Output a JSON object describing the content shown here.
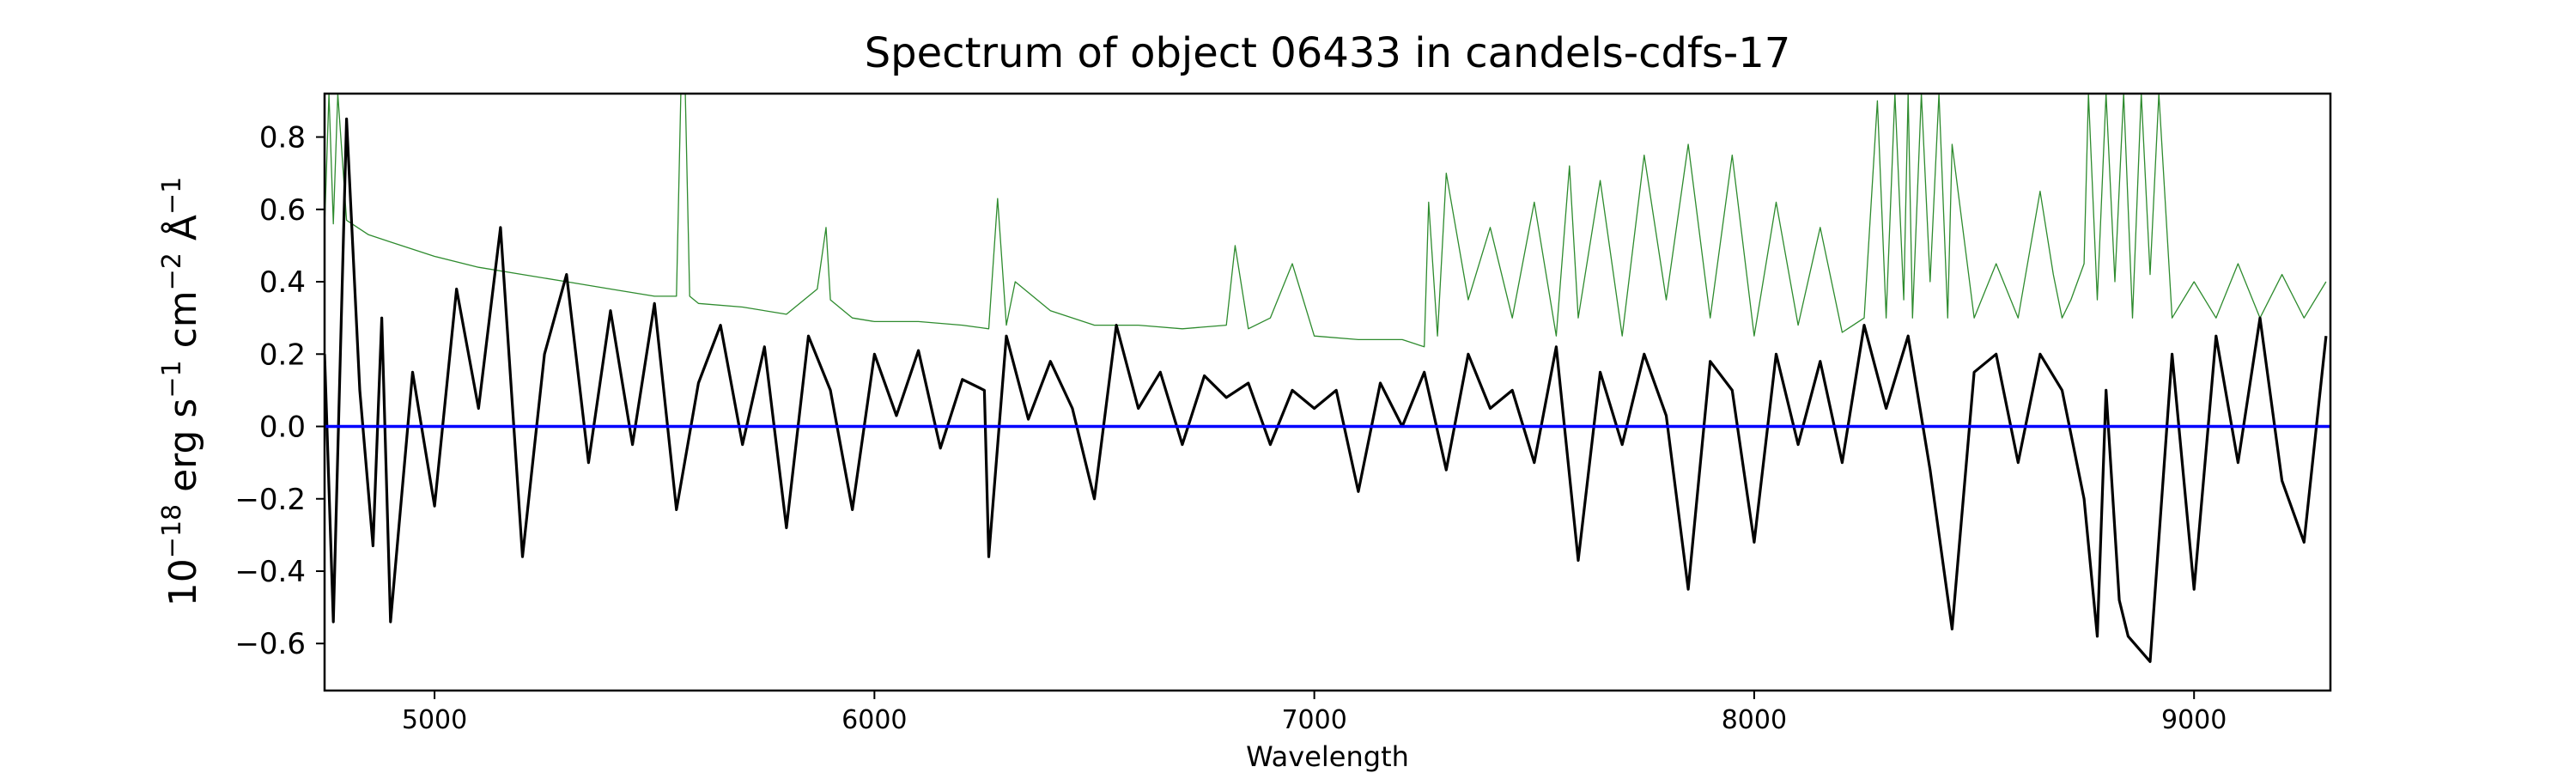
{
  "chart_data": {
    "type": "line",
    "title": "Spectrum of object 06433 in candels-cdfs-17",
    "xlabel": "Wavelength",
    "ylabel": {
      "base": "10",
      "exp1": "−18",
      "unit_erg": " erg s",
      "exp2": "−1",
      "unit_cm": " cm",
      "exp3": "−2",
      "unit_A": " Å",
      "exp4": "−1"
    },
    "xlim": [
      4750,
      9310
    ],
    "ylim": [
      -0.73,
      0.92
    ],
    "xticks": [
      5000,
      6000,
      7000,
      8000,
      9000
    ],
    "xtick_labels": [
      "5000",
      "6000",
      "7000",
      "8000",
      "9000"
    ],
    "yticks": [
      -0.6,
      -0.4,
      -0.2,
      0.0,
      0.2,
      0.4,
      0.6,
      0.8
    ],
    "ytick_labels": [
      "−0.6",
      "−0.4",
      "−0.2",
      "0.0",
      "0.2",
      "0.4",
      "0.6",
      "0.8"
    ],
    "grid": false,
    "legend": "none",
    "series": [
      {
        "color": "#000000",
        "x": [
          4750,
          4770,
          4800,
          4830,
          4860,
          4880,
          4900,
          4950,
          5000,
          5050,
          5100,
          5150,
          5200,
          5250,
          5300,
          5350,
          5400,
          5450,
          5500,
          5550,
          5600,
          5650,
          5700,
          5750,
          5800,
          5850,
          5900,
          5950,
          6000,
          6050,
          6100,
          6150,
          6200,
          6250,
          6260,
          6300,
          6350,
          6400,
          6450,
          6500,
          6550,
          6600,
          6650,
          6700,
          6750,
          6800,
          6850,
          6900,
          6950,
          7000,
          7050,
          7100,
          7150,
          7200,
          7250,
          7300,
          7350,
          7400,
          7450,
          7500,
          7550,
          7600,
          7650,
          7700,
          7750,
          7800,
          7850,
          7900,
          7950,
          8000,
          8050,
          8100,
          8150,
          8200,
          8250,
          8300,
          8350,
          8400,
          8450,
          8500,
          8550,
          8600,
          8650,
          8700,
          8750,
          8780,
          8800,
          8830,
          8850,
          8900,
          8950,
          9000,
          9050,
          9100,
          9150,
          9200,
          9250,
          9300
        ],
        "y": [
          0.2,
          -0.54,
          0.85,
          0.1,
          -0.33,
          0.3,
          -0.54,
          0.15,
          -0.22,
          0.38,
          0.05,
          0.55,
          -0.36,
          0.2,
          0.42,
          -0.1,
          0.32,
          -0.05,
          0.34,
          -0.23,
          0.12,
          0.28,
          -0.05,
          0.22,
          -0.28,
          0.25,
          0.1,
          -0.23,
          0.2,
          0.03,
          0.21,
          -0.06,
          0.13,
          0.1,
          -0.36,
          0.25,
          0.02,
          0.18,
          0.05,
          -0.2,
          0.28,
          0.05,
          0.15,
          -0.05,
          0.14,
          0.08,
          0.12,
          -0.05,
          0.1,
          0.05,
          0.1,
          -0.18,
          0.12,
          0.0,
          0.15,
          -0.12,
          0.2,
          0.05,
          0.1,
          -0.1,
          0.22,
          -0.37,
          0.15,
          -0.05,
          0.2,
          0.03,
          -0.45,
          0.18,
          0.1,
          -0.32,
          0.2,
          -0.05,
          0.18,
          -0.1,
          0.28,
          0.05,
          0.25,
          -0.12,
          -0.56,
          0.15,
          0.2,
          -0.1,
          0.2,
          0.1,
          -0.2,
          -0.58,
          0.1,
          -0.48,
          -0.58,
          -0.65,
          0.2,
          -0.45,
          0.25,
          -0.1,
          0.3,
          -0.15,
          -0.32,
          0.25
        ],
        "linewidth": "thick"
      },
      {
        "color": "#2e8b2e",
        "x": [
          4750,
          4760,
          4770,
          4780,
          4800,
          4850,
          4900,
          5000,
          5100,
          5200,
          5300,
          5400,
          5500,
          5550,
          5560,
          5570,
          5580,
          5600,
          5700,
          5800,
          5870,
          5890,
          5900,
          5950,
          6000,
          6100,
          6200,
          6260,
          6280,
          6300,
          6320,
          6400,
          6500,
          6600,
          6700,
          6800,
          6820,
          6850,
          6900,
          6950,
          7000,
          7100,
          7200,
          7250,
          7260,
          7280,
          7300,
          7350,
          7400,
          7450,
          7500,
          7550,
          7580,
          7600,
          7650,
          7700,
          7750,
          7800,
          7850,
          7900,
          7950,
          8000,
          8050,
          8100,
          8150,
          8200,
          8250,
          8280,
          8300,
          8320,
          8340,
          8350,
          8360,
          8380,
          8400,
          8420,
          8440,
          8450,
          8500,
          8550,
          8600,
          8650,
          8680,
          8700,
          8720,
          8750,
          8760,
          8780,
          8800,
          8820,
          8840,
          8860,
          8880,
          8900,
          8920,
          8950,
          9000,
          9050,
          9100,
          9150,
          9200,
          9250,
          9300
        ],
        "y": [
          0.55,
          0.92,
          0.56,
          0.92,
          0.57,
          0.53,
          0.51,
          0.47,
          0.44,
          0.42,
          0.4,
          0.38,
          0.36,
          0.36,
          0.92,
          0.92,
          0.36,
          0.34,
          0.33,
          0.31,
          0.38,
          0.55,
          0.35,
          0.3,
          0.29,
          0.29,
          0.28,
          0.27,
          0.63,
          0.28,
          0.4,
          0.32,
          0.28,
          0.28,
          0.27,
          0.28,
          0.5,
          0.27,
          0.3,
          0.45,
          0.25,
          0.24,
          0.24,
          0.22,
          0.62,
          0.25,
          0.7,
          0.35,
          0.55,
          0.3,
          0.62,
          0.25,
          0.72,
          0.3,
          0.68,
          0.25,
          0.75,
          0.35,
          0.78,
          0.3,
          0.75,
          0.25,
          0.62,
          0.28,
          0.55,
          0.26,
          0.3,
          0.9,
          0.3,
          0.92,
          0.35,
          0.92,
          0.3,
          0.92,
          0.4,
          0.92,
          0.3,
          0.78,
          0.3,
          0.45,
          0.3,
          0.65,
          0.42,
          0.3,
          0.35,
          0.45,
          0.92,
          0.35,
          0.92,
          0.4,
          0.92,
          0.3,
          0.92,
          0.42,
          0.92,
          0.3,
          0.4,
          0.3,
          0.45,
          0.3,
          0.42,
          0.3,
          0.4
        ],
        "linewidth": "thin"
      },
      {
        "color": "#0000ff",
        "x": [
          4750,
          9310
        ],
        "y": [
          0.0,
          0.0
        ],
        "linewidth": "medium"
      }
    ]
  }
}
